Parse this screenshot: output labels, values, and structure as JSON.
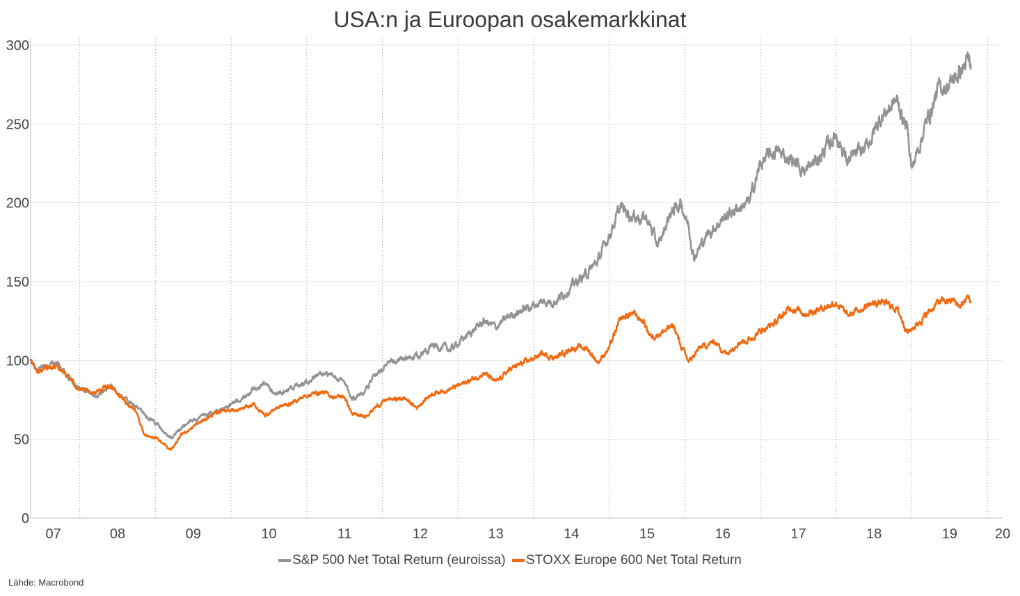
{
  "chart_data": {
    "type": "line",
    "title": "USA:n ja Euroopan osakemarkkinat",
    "xlabel": "",
    "ylabel": "",
    "ylim": [
      0,
      300
    ],
    "yticks": [
      0,
      50,
      100,
      150,
      200,
      250,
      300
    ],
    "xlim": [
      2007.35,
      2020.2
    ],
    "xticks": [
      {
        "label": "07",
        "value": 2007.65
      },
      {
        "label": "08",
        "value": 2008.5
      },
      {
        "label": "09",
        "value": 2009.5
      },
      {
        "label": "10",
        "value": 2010.5
      },
      {
        "label": "11",
        "value": 2011.5
      },
      {
        "label": "12",
        "value": 2012.5
      },
      {
        "label": "13",
        "value": 2013.5
      },
      {
        "label": "14",
        "value": 2014.5
      },
      {
        "label": "15",
        "value": 2015.5
      },
      {
        "label": "16",
        "value": 2016.5
      },
      {
        "label": "17",
        "value": 2017.5
      },
      {
        "label": "18",
        "value": 2018.5
      },
      {
        "label": "19",
        "value": 2019.5
      },
      {
        "label": "20",
        "value": 2020.2
      }
    ],
    "year_dividers": [
      2008,
      2009,
      2010,
      2011,
      2012,
      2013,
      2014,
      2015,
      2016,
      2017,
      2018,
      2019,
      2020
    ],
    "grid": true,
    "legend_position": "bottom",
    "series": [
      {
        "name": "S&P 500 Net Total Return (euroissa)",
        "color": "#939393",
        "points": [
          [
            2007.35,
            100
          ],
          [
            2007.45,
            93
          ],
          [
            2007.55,
            97
          ],
          [
            2007.7,
            98
          ],
          [
            2007.85,
            89
          ],
          [
            2008.0,
            82
          ],
          [
            2008.2,
            77
          ],
          [
            2008.4,
            84
          ],
          [
            2008.6,
            76
          ],
          [
            2008.75,
            70
          ],
          [
            2008.9,
            64
          ],
          [
            2009.05,
            58
          ],
          [
            2009.15,
            54
          ],
          [
            2009.22,
            51
          ],
          [
            2009.35,
            58
          ],
          [
            2009.5,
            62
          ],
          [
            2009.7,
            66
          ],
          [
            2009.9,
            69
          ],
          [
            2010.1,
            74
          ],
          [
            2010.3,
            82
          ],
          [
            2010.45,
            86
          ],
          [
            2010.6,
            78
          ],
          [
            2010.8,
            83
          ],
          [
            2011.0,
            87
          ],
          [
            2011.2,
            92
          ],
          [
            2011.35,
            89
          ],
          [
            2011.5,
            86
          ],
          [
            2011.6,
            76
          ],
          [
            2011.75,
            80
          ],
          [
            2011.9,
            90
          ],
          [
            2012.05,
            97
          ],
          [
            2012.3,
            101
          ],
          [
            2012.5,
            103
          ],
          [
            2012.65,
            110
          ],
          [
            2012.9,
            107
          ],
          [
            2013.1,
            115
          ],
          [
            2013.35,
            125
          ],
          [
            2013.5,
            121
          ],
          [
            2013.7,
            129
          ],
          [
            2013.9,
            133
          ],
          [
            2014.1,
            137
          ],
          [
            2014.3,
            138
          ],
          [
            2014.5,
            147
          ],
          [
            2014.7,
            155
          ],
          [
            2014.85,
            163
          ],
          [
            2015.0,
            180
          ],
          [
            2015.15,
            197
          ],
          [
            2015.3,
            192
          ],
          [
            2015.5,
            190
          ],
          [
            2015.65,
            172
          ],
          [
            2015.8,
            193
          ],
          [
            2015.95,
            200
          ],
          [
            2016.05,
            185
          ],
          [
            2016.12,
            166
          ],
          [
            2016.3,
            180
          ],
          [
            2016.5,
            190
          ],
          [
            2016.7,
            197
          ],
          [
            2016.85,
            200
          ],
          [
            2017.0,
            225
          ],
          [
            2017.2,
            233
          ],
          [
            2017.45,
            226
          ],
          [
            2017.6,
            220
          ],
          [
            2017.8,
            230
          ],
          [
            2018.0,
            244
          ],
          [
            2018.15,
            226
          ],
          [
            2018.4,
            235
          ],
          [
            2018.6,
            255
          ],
          [
            2018.8,
            265
          ],
          [
            2018.95,
            245
          ],
          [
            2019.0,
            221
          ],
          [
            2019.15,
            245
          ],
          [
            2019.35,
            272
          ],
          [
            2019.5,
            275
          ],
          [
            2019.6,
            281
          ],
          [
            2019.75,
            290
          ],
          [
            2019.78,
            285
          ]
        ]
      },
      {
        "name": "STOXX Europe 600 Net Total Return",
        "color": "#f26a10",
        "points": [
          [
            2007.35,
            100
          ],
          [
            2007.45,
            92
          ],
          [
            2007.55,
            96
          ],
          [
            2007.7,
            97
          ],
          [
            2007.85,
            90
          ],
          [
            2008.0,
            81
          ],
          [
            2008.2,
            80
          ],
          [
            2008.4,
            84
          ],
          [
            2008.6,
            74
          ],
          [
            2008.75,
            68
          ],
          [
            2008.85,
            52
          ],
          [
            2009.0,
            51
          ],
          [
            2009.15,
            46
          ],
          [
            2009.2,
            43
          ],
          [
            2009.35,
            53
          ],
          [
            2009.5,
            58
          ],
          [
            2009.7,
            64
          ],
          [
            2009.9,
            69
          ],
          [
            2010.1,
            68
          ],
          [
            2010.3,
            72
          ],
          [
            2010.45,
            65
          ],
          [
            2010.6,
            70
          ],
          [
            2010.8,
            73
          ],
          [
            2011.0,
            78
          ],
          [
            2011.2,
            80
          ],
          [
            2011.35,
            77
          ],
          [
            2011.5,
            77
          ],
          [
            2011.6,
            66
          ],
          [
            2011.75,
            64
          ],
          [
            2011.9,
            70
          ],
          [
            2012.05,
            75
          ],
          [
            2012.3,
            76
          ],
          [
            2012.45,
            70
          ],
          [
            2012.65,
            79
          ],
          [
            2012.9,
            82
          ],
          [
            2013.1,
            86
          ],
          [
            2013.35,
            92
          ],
          [
            2013.5,
            86
          ],
          [
            2013.7,
            95
          ],
          [
            2013.9,
            99
          ],
          [
            2014.1,
            104
          ],
          [
            2014.3,
            102
          ],
          [
            2014.5,
            108
          ],
          [
            2014.7,
            108
          ],
          [
            2014.85,
            99
          ],
          [
            2015.0,
            108
          ],
          [
            2015.15,
            126
          ],
          [
            2015.3,
            130
          ],
          [
            2015.45,
            125
          ],
          [
            2015.55,
            115
          ],
          [
            2015.7,
            118
          ],
          [
            2015.85,
            122
          ],
          [
            2015.95,
            109
          ],
          [
            2016.05,
            99
          ],
          [
            2016.2,
            108
          ],
          [
            2016.4,
            112
          ],
          [
            2016.55,
            104
          ],
          [
            2016.7,
            112
          ],
          [
            2016.85,
            113
          ],
          [
            2017.0,
            119
          ],
          [
            2017.2,
            124
          ],
          [
            2017.4,
            134
          ],
          [
            2017.6,
            130
          ],
          [
            2017.8,
            133
          ],
          [
            2018.0,
            137
          ],
          [
            2018.15,
            128
          ],
          [
            2018.4,
            135
          ],
          [
            2018.6,
            137
          ],
          [
            2018.8,
            133
          ],
          [
            2018.95,
            118
          ],
          [
            2019.0,
            120
          ],
          [
            2019.15,
            127
          ],
          [
            2019.35,
            137
          ],
          [
            2019.55,
            138
          ],
          [
            2019.65,
            134
          ],
          [
            2019.75,
            141
          ],
          [
            2019.78,
            137
          ]
        ]
      }
    ],
    "source": "Lähde: Macrobond"
  }
}
